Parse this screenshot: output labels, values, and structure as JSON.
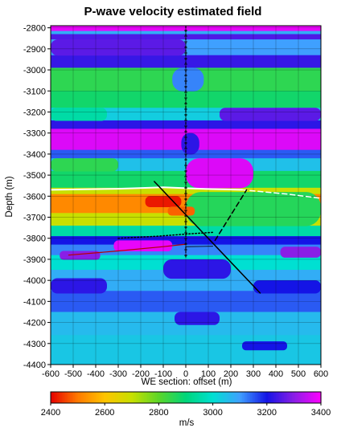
{
  "chart_data": {
    "type": "heatmap",
    "title": "P-wave velocity estimated field",
    "xlabel": "WE section: offset (m)",
    "ylabel": "Depth (m)",
    "xlim": [
      -600,
      600
    ],
    "ylim": [
      -4400,
      -2790
    ],
    "x_ticks": [
      -600,
      -500,
      -400,
      -300,
      -200,
      -100,
      0,
      100,
      200,
      300,
      400,
      500,
      600
    ],
    "y_ticks": [
      -2800,
      -2900,
      -3000,
      -3100,
      -3200,
      -3300,
      -3400,
      -3500,
      -3600,
      -3700,
      -3800,
      -3900,
      -4000,
      -4100,
      -4200,
      -4300,
      -4400
    ],
    "x_tick_labels": [
      "-600",
      "-500",
      "-400",
      "-300",
      "-200",
      "-100",
      "0",
      "100",
      "200",
      "300",
      "400",
      "500",
      "600"
    ],
    "y_tick_labels": [
      "-2800",
      "-2900",
      "-3000",
      "-3100",
      "-3200",
      "-3300",
      "-3400",
      "-3500",
      "-3600",
      "-3700",
      "-3800",
      "-3900",
      "-4000",
      "-4100",
      "-4200",
      "-4300",
      "-4400"
    ],
    "grid": true,
    "colorbar": {
      "label": "m/s",
      "min": 2400,
      "max": 3400,
      "tick_labels": [
        "2400",
        "2600",
        "2800",
        "3000",
        "3200",
        "3400"
      ],
      "tick_values": [
        2400,
        2600,
        2800,
        3000,
        3200,
        3400
      ],
      "stops": [
        {
          "v": 2400,
          "color": "#e60000"
        },
        {
          "v": 2500,
          "color": "#ff7a00"
        },
        {
          "v": 2600,
          "color": "#ffc400"
        },
        {
          "v": 2700,
          "color": "#c8e000"
        },
        {
          "v": 2800,
          "color": "#5cd629"
        },
        {
          "v": 2900,
          "color": "#00d67a"
        },
        {
          "v": 3000,
          "color": "#00e0d2"
        },
        {
          "v": 3100,
          "color": "#3fa0ff"
        },
        {
          "v": 3200,
          "color": "#1414e6"
        },
        {
          "v": 3300,
          "color": "#8a1ee6"
        },
        {
          "v": 3400,
          "color": "#ff00ff"
        }
      ]
    },
    "velocity_layers": [
      {
        "depth": [
          -2800,
          -2815
        ],
        "velocity": 3380
      },
      {
        "depth": [
          -2815,
          -2830
        ],
        "velocity": 3080
      },
      {
        "depth": [
          -2830,
          -2855
        ],
        "velocity": 3250
      },
      {
        "depth": [
          -2855,
          -2930
        ],
        "velocity": 3100
      },
      {
        "depth": [
          -2930,
          -2990
        ],
        "velocity": 3230
      },
      {
        "depth": [
          -2990,
          -3100
        ],
        "velocity": 2850
      },
      {
        "depth": [
          -3100,
          -3180
        ],
        "velocity": 2880
      },
      {
        "depth": [
          -3180,
          -3240
        ],
        "velocity": 3030
      },
      {
        "depth": [
          -3240,
          -3280
        ],
        "velocity": 3220
      },
      {
        "depth": [
          -3280,
          -3380
        ],
        "velocity": 3370
      },
      {
        "depth": [
          -3380,
          -3420
        ],
        "velocity": 3150
      },
      {
        "depth": [
          -3420,
          -3480
        ],
        "velocity": 3050
      },
      {
        "depth": [
          -3480,
          -3560
        ],
        "velocity": 2880
      },
      {
        "depth": [
          -3560,
          -3590
        ],
        "velocity": 2700
      },
      {
        "depth": [
          -3590,
          -3680
        ],
        "velocity": 2520
      },
      {
        "depth": [
          -3680,
          -3740
        ],
        "velocity": 2700
      },
      {
        "depth": [
          -3740,
          -3790
        ],
        "velocity": 2950
      },
      {
        "depth": [
          -3790,
          -3830
        ],
        "velocity": 3200
      },
      {
        "depth": [
          -3830,
          -3880
        ],
        "velocity": 3120
      },
      {
        "depth": [
          -3880,
          -3950
        ],
        "velocity": 3000
      },
      {
        "depth": [
          -3950,
          -4050
        ],
        "velocity": 3080
      },
      {
        "depth": [
          -4050,
          -4150
        ],
        "velocity": 3150
      },
      {
        "depth": [
          -4150,
          -4260
        ],
        "velocity": 3060
      },
      {
        "depth": [
          -4260,
          -4400
        ],
        "velocity": 3040
      }
    ],
    "velocity_patches": [
      {
        "x": [
          -600,
          0
        ],
        "depth": [
          -2855,
          -2930
        ],
        "velocity": 3260
      },
      {
        "x": [
          -60,
          80
        ],
        "depth": [
          -2990,
          -3100
        ],
        "velocity": 3120
      },
      {
        "x": [
          150,
          600
        ],
        "depth": [
          -3180,
          -3240
        ],
        "velocity": 3260
      },
      {
        "x": [
          -600,
          -350
        ],
        "depth": [
          -3180,
          -3240
        ],
        "velocity": 2950
      },
      {
        "x": [
          -20,
          60
        ],
        "depth": [
          -3300,
          -3400
        ],
        "velocity": 3220
      },
      {
        "x": [
          0,
          300
        ],
        "depth": [
          -3420,
          -3560
        ],
        "velocity": 3370
      },
      {
        "x": [
          -600,
          -300
        ],
        "depth": [
          -3420,
          -3480
        ],
        "velocity": 2850
      },
      {
        "x": [
          0,
          600
        ],
        "depth": [
          -3580,
          -3740
        ],
        "velocity": 2860
      },
      {
        "x": [
          -180,
          -20
        ],
        "depth": [
          -3600,
          -3650
        ],
        "velocity": 2420
      },
      {
        "x": [
          -80,
          40
        ],
        "depth": [
          -3650,
          -3690
        ],
        "velocity": 2480
      },
      {
        "x": [
          -320,
          -60
        ],
        "depth": [
          -3810,
          -3860
        ],
        "velocity": 3380
      },
      {
        "x": [
          -560,
          -380
        ],
        "depth": [
          -3860,
          -3900
        ],
        "velocity": 3300
      },
      {
        "x": [
          420,
          600
        ],
        "depth": [
          -3840,
          -3890
        ],
        "velocity": 3300
      },
      {
        "x": [
          -100,
          200
        ],
        "depth": [
          -3900,
          -3990
        ],
        "velocity": 3220
      },
      {
        "x": [
          -600,
          -350
        ],
        "depth": [
          -3990,
          -4060
        ],
        "velocity": 3220
      },
      {
        "x": [
          300,
          600
        ],
        "depth": [
          -4000,
          -4060
        ],
        "velocity": 3200
      },
      {
        "x": [
          -50,
          150
        ],
        "depth": [
          -4150,
          -4210
        ],
        "velocity": 3220
      },
      {
        "x": [
          250,
          450
        ],
        "depth": [
          -4290,
          -4330
        ],
        "velocity": 3200
      }
    ],
    "overlay_lines": [
      {
        "name": "",
        "color": "#ffffff",
        "style": "solid",
        "width": 2,
        "x": [
          -600,
          -300,
          -100,
          0,
          100,
          250
        ],
        "y": [
          -3570,
          -3565,
          -3558,
          -3562,
          -3566,
          -3570
        ]
      },
      {
        "name": "",
        "color": "#ffffff",
        "style": "dashed",
        "width": 1.5,
        "x": [
          250,
          450,
          600
        ],
        "y": [
          -3570,
          -3590,
          -3610
        ]
      },
      {
        "name": "",
        "color": "#000000",
        "style": "solid",
        "width": 1.5,
        "x": [
          -140,
          330
        ],
        "y": [
          -3530,
          -4060
        ]
      },
      {
        "name": "",
        "color": "#000000",
        "style": "dashed",
        "width": 1.5,
        "x": [
          130,
          270
        ],
        "y": [
          -3810,
          -3570
        ]
      },
      {
        "name": "",
        "color": "#000000",
        "style": "dotted",
        "width": 1.5,
        "x": [
          -300,
          -120,
          0,
          120
        ],
        "y": [
          -3800,
          -3790,
          -3780,
          -3772
        ]
      },
      {
        "name": "",
        "color": "#b50000",
        "style": "solid",
        "width": 1.2,
        "x": [
          -520,
          -300,
          -100,
          0
        ],
        "y": [
          -3880,
          -3860,
          -3840,
          -3828
        ]
      },
      {
        "name": "",
        "color": "#000000",
        "style": "solid",
        "width": 0.8,
        "x": [
          0,
          120
        ],
        "y": [
          -3840,
          -3838
        ]
      },
      {
        "name": "",
        "color": "#000000",
        "style": "borehole",
        "width": 1.2,
        "x": [
          0,
          0
        ],
        "y": [
          -2790,
          -3890
        ]
      }
    ]
  }
}
